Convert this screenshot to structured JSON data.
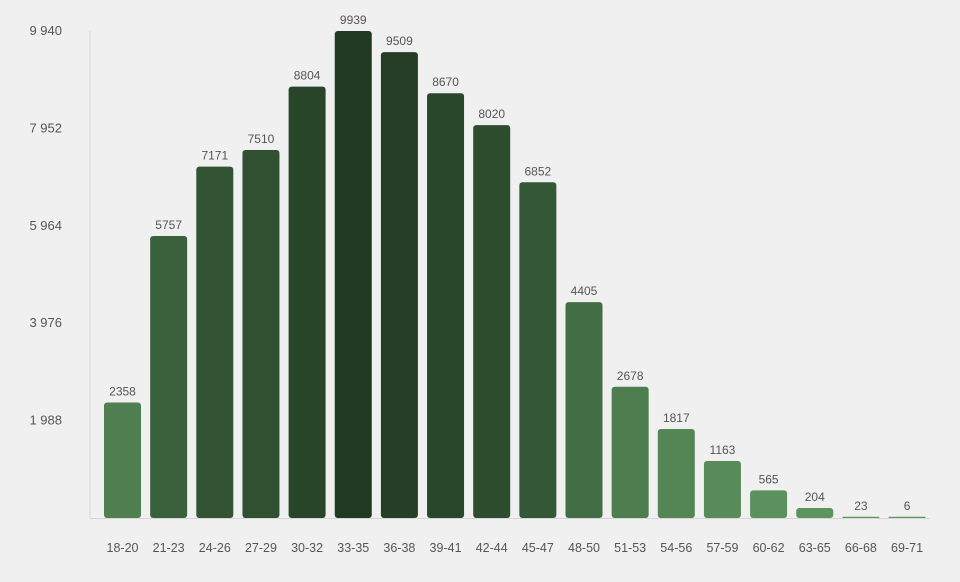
{
  "chart_data": {
    "type": "bar",
    "title": "",
    "xlabel": "",
    "ylabel": "",
    "categories": [
      "18-20",
      "21-23",
      "24-26",
      "27-29",
      "30-32",
      "33-35",
      "36-38",
      "39-41",
      "42-44",
      "45-47",
      "48-50",
      "51-53",
      "54-56",
      "57-59",
      "60-62",
      "63-65",
      "66-68",
      "69-71"
    ],
    "values": [
      2358,
      5757,
      7171,
      7510,
      8804,
      9939,
      9509,
      8670,
      8020,
      6852,
      4405,
      2678,
      1817,
      1163,
      565,
      204,
      23,
      6
    ],
    "value_labels": [
      "2358",
      "5757",
      "7171",
      "7510",
      "8804",
      "9939",
      "9509",
      "8670",
      "8020",
      "6852",
      "4405",
      "2678",
      "1817",
      "1163",
      "565",
      "204",
      "23",
      "6"
    ],
    "y_ticks": [
      {
        "value": 1988,
        "label": "1 988"
      },
      {
        "value": 3976,
        "label": "3 976"
      },
      {
        "value": 5964,
        "label": "5 964"
      },
      {
        "value": 7952,
        "label": "7 952"
      },
      {
        "value": 9940,
        "label": "9 940"
      }
    ],
    "ylim": [
      0,
      9940
    ],
    "grid": false,
    "legend": "none",
    "colors": {
      "light": "#5e9660",
      "dark": "#213b22",
      "background": "#f0f0f0",
      "axis": "#d6d6d6"
    }
  }
}
